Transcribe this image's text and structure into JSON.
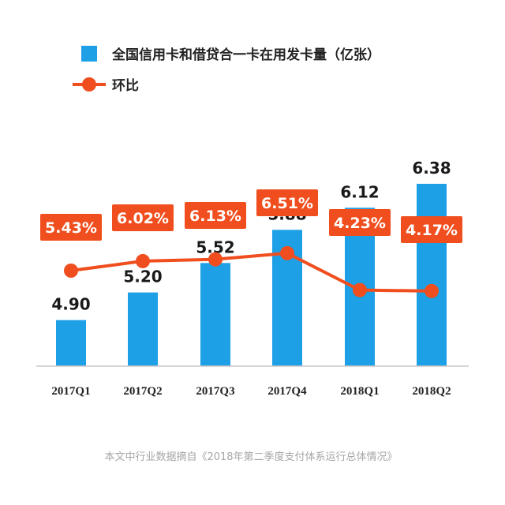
{
  "chart_data": {
    "type": "bar",
    "categories": [
      "2017Q1",
      "2017Q2",
      "2017Q3",
      "2017Q4",
      "2018Q1",
      "2018Q2"
    ],
    "series": [
      {
        "name": "全国信用卡和借贷合一卡在用发卡量（亿张）",
        "type": "bar",
        "values": [
          4.9,
          5.2,
          5.52,
          5.88,
          6.12,
          6.38
        ],
        "value_labels": [
          "4.90",
          "5.20",
          "5.52",
          "5.88",
          "6.12",
          "6.38"
        ],
        "color": "#1ea0e6"
      },
      {
        "name": "环比",
        "type": "line",
        "values": [
          5.43,
          6.02,
          6.13,
          6.51,
          4.23,
          4.17
        ],
        "value_labels": [
          "5.43%",
          "6.02%",
          "6.13%",
          "6.51%",
          "4.23%",
          "4.17%"
        ],
        "color": "#f04e1e"
      }
    ],
    "legend_position": "top-left",
    "grid": false
  },
  "footer": {
    "source_note": "本文中行业数据摘自《2018年第二季度支付体系运行总体情况》"
  },
  "colors": {
    "bar": "#1ea0e6",
    "line": "#f04e1e",
    "value_text": "#1a1a1a",
    "tick_text": "#222222",
    "footer_text": "#a6a6a6",
    "axis": "#c8c8c8"
  }
}
